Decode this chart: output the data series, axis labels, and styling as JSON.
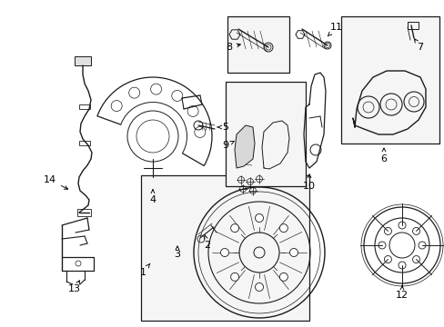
{
  "bg_color": "#ffffff",
  "line_color": "#1a1a1a",
  "label_color": "#000000",
  "fig_w": 4.89,
  "fig_h": 3.6,
  "dpi": 100,
  "xlim": [
    0,
    489
  ],
  "ylim": [
    0,
    360
  ]
}
